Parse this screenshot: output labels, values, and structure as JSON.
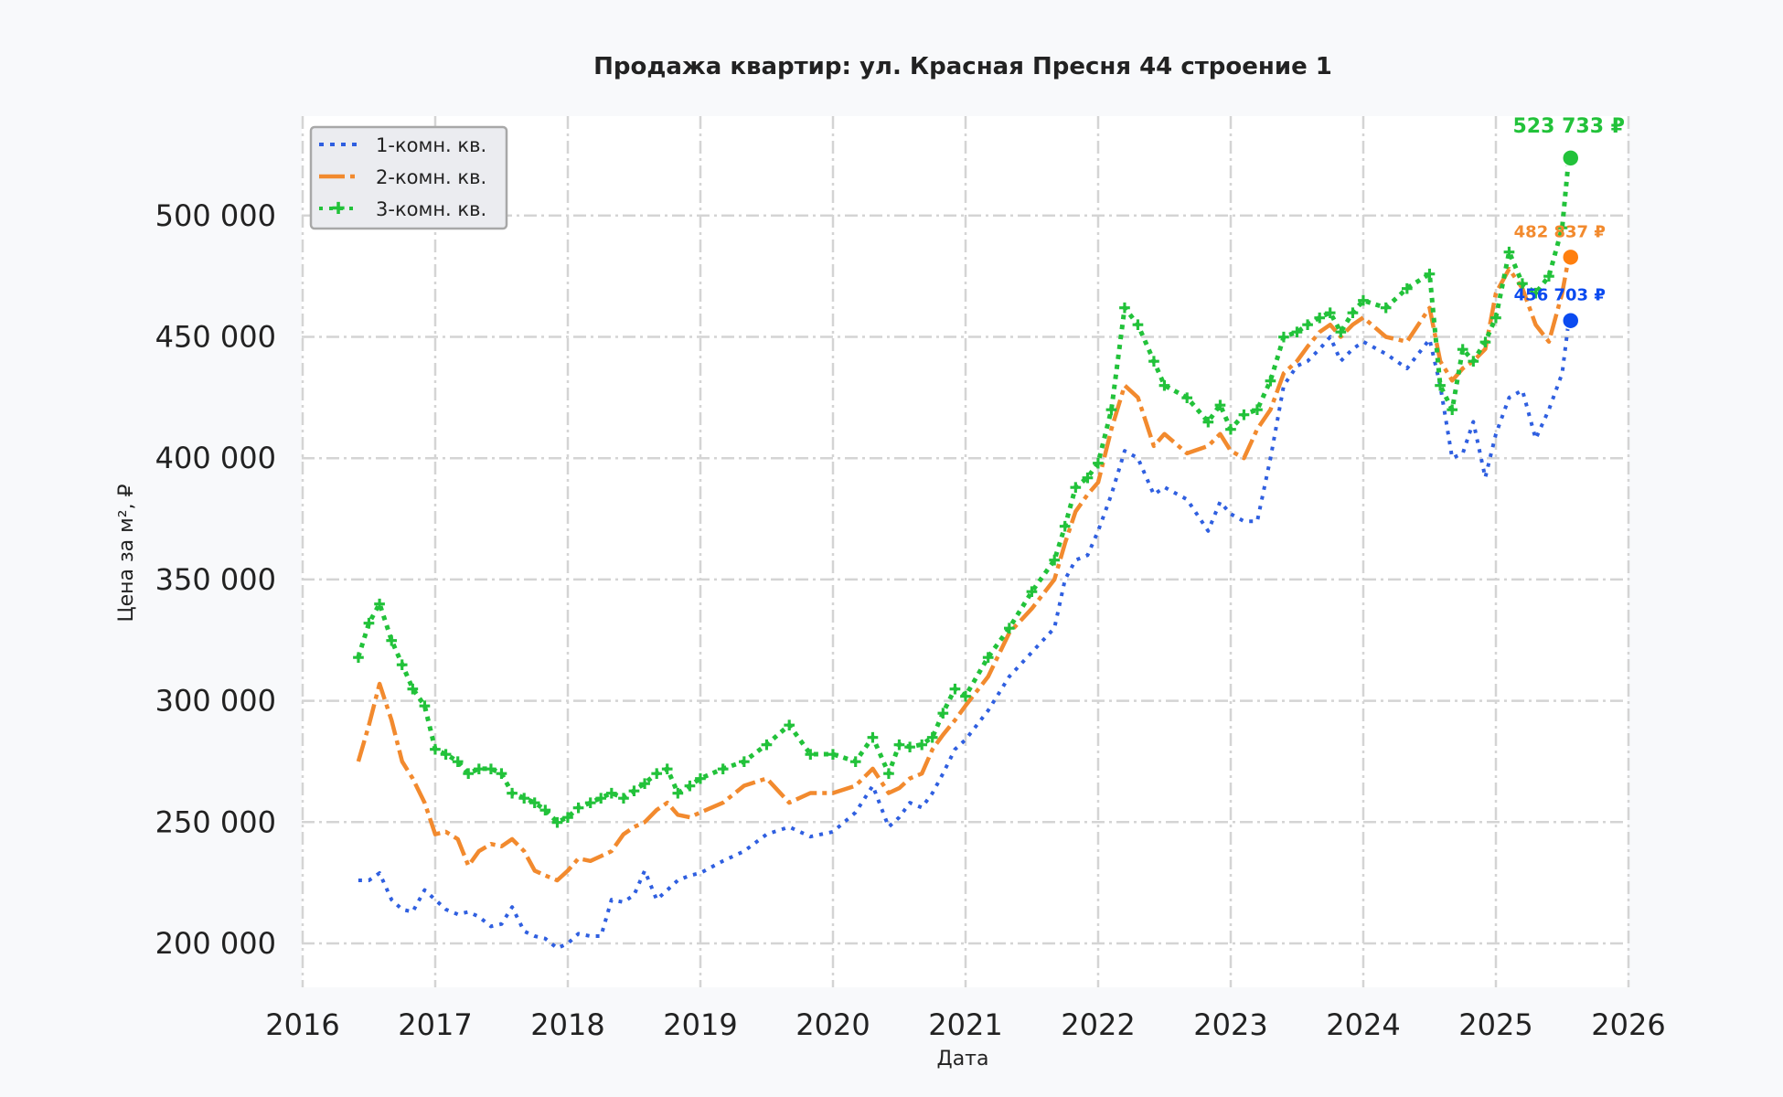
{
  "chart_data": {
    "type": "line",
    "title": "Продажа квартир: ул. Красная Пресня 44 строение 1",
    "xlabel": "Дата",
    "ylabel": "Цена за м², ₽",
    "x_ticks": [
      "2016",
      "2017",
      "2018",
      "2019",
      "2020",
      "2021",
      "2022",
      "2023",
      "2024",
      "2025",
      "2026"
    ],
    "y_ticks": [
      {
        "value": 200000,
        "label": "200 000"
      },
      {
        "value": 250000,
        "label": "250 000"
      },
      {
        "value": 300000,
        "label": "300 000"
      },
      {
        "value": 350000,
        "label": "350 000"
      },
      {
        "value": 400000,
        "label": "400 000"
      },
      {
        "value": 450000,
        "label": "450 000"
      },
      {
        "value": 500000,
        "label": "500 000"
      }
    ],
    "xlim": [
      2016.0,
      2026.0
    ],
    "ylim": [
      180000,
      540000
    ],
    "grid": true,
    "legend_position": "upper left",
    "series": [
      {
        "name": "1-комн. кв.",
        "color": "#2f5fe0",
        "style": "dotted",
        "x": [
          2016.42,
          2016.5,
          2016.58,
          2016.67,
          2016.75,
          2016.83,
          2016.92,
          2017.0,
          2017.08,
          2017.17,
          2017.25,
          2017.33,
          2017.42,
          2017.5,
          2017.58,
          2017.67,
          2017.75,
          2017.83,
          2017.92,
          2018.0,
          2018.08,
          2018.17,
          2018.25,
          2018.33,
          2018.42,
          2018.5,
          2018.58,
          2018.67,
          2018.75,
          2018.83,
          2018.92,
          2019.0,
          2019.17,
          2019.33,
          2019.5,
          2019.67,
          2019.83,
          2020.0,
          2020.17,
          2020.3,
          2020.42,
          2020.5,
          2020.58,
          2020.67,
          2020.75,
          2020.83,
          2020.92,
          2021.0,
          2021.17,
          2021.33,
          2021.5,
          2021.67,
          2021.75,
          2021.83,
          2021.92,
          2022.0,
          2022.1,
          2022.2,
          2022.3,
          2022.42,
          2022.5,
          2022.67,
          2022.83,
          2022.92,
          2023.0,
          2023.1,
          2023.2,
          2023.3,
          2023.4,
          2023.5,
          2023.58,
          2023.67,
          2023.75,
          2023.83,
          2023.92,
          2024.0,
          2024.17,
          2024.33,
          2024.5,
          2024.58,
          2024.67,
          2024.75,
          2024.83,
          2024.92,
          2025.0,
          2025.1,
          2025.2,
          2025.3,
          2025.4,
          2025.5,
          2025.55
        ],
        "values": [
          226000,
          226000,
          229000,
          218000,
          214000,
          213000,
          222000,
          218000,
          214000,
          212000,
          213000,
          211000,
          207000,
          208000,
          215000,
          205000,
          203000,
          202000,
          198000,
          200000,
          204000,
          203000,
          203000,
          218000,
          217000,
          220000,
          230000,
          218000,
          222000,
          226000,
          228000,
          229000,
          234000,
          238000,
          245000,
          248000,
          244000,
          246000,
          254000,
          265000,
          248000,
          252000,
          258000,
          256000,
          262000,
          270000,
          280000,
          284000,
          296000,
          310000,
          320000,
          330000,
          350000,
          358000,
          360000,
          370000,
          385000,
          403000,
          400000,
          385000,
          388000,
          383000,
          370000,
          382000,
          377000,
          374000,
          374000,
          400000,
          430000,
          438000,
          440000,
          445000,
          450000,
          440000,
          445000,
          448000,
          443000,
          437000,
          449000,
          430000,
          400000,
          402000,
          415000,
          392000,
          410000,
          425000,
          428000,
          408000,
          420000,
          435000,
          456703
        ]
      },
      {
        "name": "2-комн. кв.",
        "color": "#f28a2e",
        "style": "dashdot",
        "x": [
          2016.42,
          2016.5,
          2016.58,
          2016.67,
          2016.75,
          2016.83,
          2016.92,
          2017.0,
          2017.08,
          2017.17,
          2017.25,
          2017.33,
          2017.42,
          2017.5,
          2017.58,
          2017.67,
          2017.75,
          2017.83,
          2017.92,
          2018.0,
          2018.08,
          2018.17,
          2018.25,
          2018.33,
          2018.42,
          2018.5,
          2018.58,
          2018.67,
          2018.75,
          2018.83,
          2018.92,
          2019.0,
          2019.17,
          2019.33,
          2019.5,
          2019.67,
          2019.83,
          2020.0,
          2020.17,
          2020.3,
          2020.42,
          2020.5,
          2020.58,
          2020.67,
          2020.75,
          2020.83,
          2020.92,
          2021.0,
          2021.17,
          2021.33,
          2021.5,
          2021.67,
          2021.75,
          2021.83,
          2021.92,
          2022.0,
          2022.1,
          2022.2,
          2022.3,
          2022.42,
          2022.5,
          2022.67,
          2022.83,
          2022.92,
          2023.0,
          2023.1,
          2023.2,
          2023.3,
          2023.4,
          2023.5,
          2023.58,
          2023.67,
          2023.75,
          2023.83,
          2023.92,
          2024.0,
          2024.17,
          2024.33,
          2024.5,
          2024.58,
          2024.67,
          2024.75,
          2024.83,
          2024.92,
          2025.0,
          2025.1,
          2025.2,
          2025.3,
          2025.4,
          2025.5,
          2025.55
        ],
        "values": [
          275000,
          290000,
          307000,
          292000,
          275000,
          268000,
          258000,
          245000,
          246000,
          243000,
          232000,
          238000,
          241000,
          240000,
          243000,
          238000,
          230000,
          228000,
          226000,
          230000,
          235000,
          234000,
          236000,
          238000,
          245000,
          248000,
          250000,
          255000,
          258000,
          253000,
          252000,
          254000,
          258000,
          265000,
          268000,
          258000,
          262000,
          262000,
          265000,
          272000,
          262000,
          264000,
          268000,
          270000,
          280000,
          286000,
          292000,
          298000,
          310000,
          328000,
          338000,
          350000,
          365000,
          378000,
          385000,
          390000,
          412000,
          430000,
          425000,
          405000,
          410000,
          402000,
          405000,
          410000,
          403000,
          400000,
          412000,
          420000,
          435000,
          440000,
          446000,
          452000,
          455000,
          450000,
          455000,
          458000,
          450000,
          448000,
          462000,
          440000,
          432000,
          437000,
          440000,
          445000,
          468000,
          478000,
          470000,
          455000,
          448000,
          468000,
          482837
        ]
      },
      {
        "name": "3-комн. кв.",
        "color": "#22c23a",
        "style": "dotted-plus",
        "x": [
          2016.42,
          2016.5,
          2016.58,
          2016.67,
          2016.75,
          2016.83,
          2016.92,
          2017.0,
          2017.08,
          2017.17,
          2017.25,
          2017.33,
          2017.42,
          2017.5,
          2017.58,
          2017.67,
          2017.75,
          2017.83,
          2017.92,
          2018.0,
          2018.08,
          2018.17,
          2018.25,
          2018.33,
          2018.42,
          2018.5,
          2018.58,
          2018.67,
          2018.75,
          2018.83,
          2018.92,
          2019.0,
          2019.17,
          2019.33,
          2019.5,
          2019.67,
          2019.83,
          2020.0,
          2020.17,
          2020.3,
          2020.42,
          2020.5,
          2020.58,
          2020.67,
          2020.75,
          2020.83,
          2020.92,
          2021.0,
          2021.17,
          2021.33,
          2021.5,
          2021.67,
          2021.75,
          2021.83,
          2021.92,
          2022.0,
          2022.1,
          2022.2,
          2022.3,
          2022.42,
          2022.5,
          2022.67,
          2022.83,
          2022.92,
          2023.0,
          2023.1,
          2023.2,
          2023.3,
          2023.4,
          2023.5,
          2023.58,
          2023.67,
          2023.75,
          2023.83,
          2023.92,
          2024.0,
          2024.17,
          2024.33,
          2024.5,
          2024.58,
          2024.67,
          2024.75,
          2024.83,
          2024.92,
          2025.0,
          2025.1,
          2025.2,
          2025.3,
          2025.4,
          2025.5,
          2025.55
        ],
        "values": [
          318000,
          332000,
          340000,
          325000,
          315000,
          305000,
          298000,
          280000,
          278000,
          275000,
          270000,
          272000,
          272000,
          270000,
          262000,
          260000,
          258000,
          255000,
          250000,
          252000,
          256000,
          258000,
          260000,
          262000,
          260000,
          263000,
          266000,
          270000,
          272000,
          262000,
          265000,
          268000,
          272000,
          275000,
          282000,
          290000,
          278000,
          278000,
          275000,
          285000,
          270000,
          282000,
          281000,
          282000,
          285000,
          295000,
          305000,
          302000,
          318000,
          330000,
          345000,
          358000,
          372000,
          388000,
          392000,
          398000,
          420000,
          462000,
          455000,
          440000,
          430000,
          425000,
          415000,
          422000,
          412000,
          418000,
          420000,
          432000,
          450000,
          452000,
          455000,
          458000,
          460000,
          452000,
          460000,
          465000,
          462000,
          470000,
          476000,
          430000,
          420000,
          445000,
          440000,
          448000,
          458000,
          485000,
          472000,
          468000,
          475000,
          495000,
          523733
        ]
      }
    ],
    "annotations": [
      {
        "text": "523 733 ₽",
        "series": "3-комн. кв.",
        "value": 523733,
        "color": "#22c23a"
      },
      {
        "text": "482 837 ₽",
        "series": "2-комн. кв.",
        "value": 482837,
        "color": "#f28a2e"
      },
      {
        "text": "456 703 ₽",
        "series": "1-комн. кв.",
        "value": 456703,
        "color": "#0b4bf0"
      }
    ]
  },
  "legend": {
    "items": [
      {
        "label": "1-комн. кв."
      },
      {
        "label": "2-комн. кв."
      },
      {
        "label": "3-комн. кв."
      }
    ]
  }
}
